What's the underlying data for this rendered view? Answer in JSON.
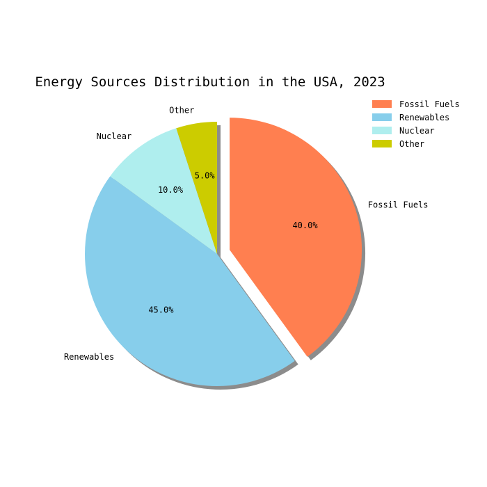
{
  "chart_data": {
    "type": "pie",
    "title": "Energy Sources Distribution in the USA, 2023",
    "categories": [
      "Fossil Fuels",
      "Renewables",
      "Nuclear",
      "Other"
    ],
    "values": [
      40.0,
      45.0,
      10.0,
      5.0
    ],
    "percent_labels": [
      "40.0%",
      "45.0%",
      "10.0%",
      "5.0%"
    ],
    "colors": [
      "#ff7f50",
      "#87ceeb",
      "#afeeee",
      "#cccc00"
    ],
    "exploded": [
      "Fossil Fuels"
    ],
    "shadow": true,
    "start_angle_deg": 90,
    "direction": "clockwise",
    "legend": {
      "position": "top-right",
      "entries": [
        "Fossil Fuels",
        "Renewables",
        "Nuclear",
        "Other"
      ]
    }
  }
}
